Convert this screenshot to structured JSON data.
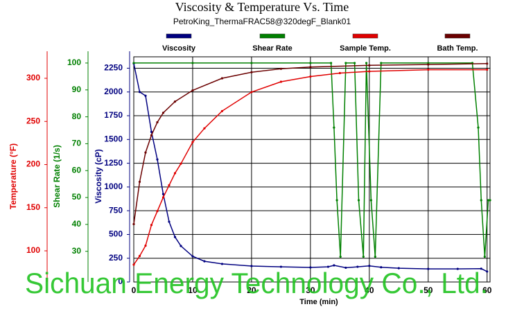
{
  "chart_data": {
    "type": "line",
    "title": "Viscosity & Temperature Vs. Time",
    "subtitle": "PetroKing_ThermaFRAC58@320degF_Blank01",
    "x_label": "Time (min)",
    "y_label": "Viscosity (cP)",
    "y2_label": "Shear Rate (1/s)",
    "y3_label": "Temperature (°F)",
    "watermark": "Sichuan Energy Technology Co., Ltd.",
    "xlim": [
      0,
      60.5
    ],
    "xticks": [
      0,
      10,
      20,
      30,
      40,
      50,
      60
    ],
    "ylim": [
      0,
      2370
    ],
    "yticks": [
      0,
      250,
      500,
      750,
      1000,
      1250,
      1500,
      1750,
      2000,
      2250
    ],
    "y2lim": [
      18.6,
      102.3
    ],
    "y2ticks": [
      30,
      40,
      50,
      60,
      70,
      80,
      90,
      100
    ],
    "y3lim": [
      63.9,
      324.9
    ],
    "y3ticks": [
      100,
      150,
      200,
      250,
      300
    ],
    "grid": true,
    "series": [
      {
        "name": "Viscosity",
        "color": "#000080",
        "axis": "y",
        "x": [
          0,
          1,
          2,
          3,
          4,
          5,
          6,
          7,
          8,
          10,
          12,
          15,
          20,
          25,
          30,
          33,
          34,
          36,
          38,
          40,
          42,
          45,
          50,
          55,
          59,
          60
        ],
        "values": [
          2300,
          2000,
          1960,
          1580,
          1290,
          925,
          634,
          473,
          379,
          270,
          218,
          190,
          168,
          160,
          153,
          160,
          175,
          150,
          160,
          170,
          155,
          145,
          138,
          138,
          140,
          110
        ]
      },
      {
        "name": "Shear Rate",
        "color": "#008000",
        "axis": "y2",
        "x": [
          0,
          10,
          20,
          30,
          33.5,
          34,
          34.5,
          35.1,
          36,
          37.5,
          38.2,
          39,
          39.5,
          40.3,
          41,
          42,
          50,
          57.5,
          58.5,
          59,
          59.6,
          60.2,
          60.5
        ],
        "values": [
          100,
          100,
          100,
          100,
          100,
          76,
          49,
          28,
          100,
          100,
          49,
          28,
          100,
          49,
          28,
          100,
          100,
          100,
          76,
          49,
          28,
          49,
          49
        ]
      },
      {
        "name": "Sample Temp.",
        "color": "#e00000",
        "axis": "y3",
        "x": [
          0,
          1,
          2,
          3,
          4,
          5,
          6,
          7,
          8,
          10,
          12,
          15,
          20,
          25,
          30,
          35,
          40,
          50,
          60
        ],
        "values": [
          84,
          94,
          106,
          130,
          146,
          162,
          176,
          190,
          201,
          226,
          242,
          262,
          284,
          296,
          302,
          306,
          308,
          310,
          310
        ]
      },
      {
        "name": "Bath Temp.",
        "color": "#6b0000",
        "axis": "y3",
        "x": [
          0,
          1,
          2,
          3,
          4,
          5,
          7,
          10,
          15,
          20,
          25,
          30,
          40,
          50,
          60
        ],
        "values": [
          131,
          180,
          214,
          234,
          249,
          260,
          273,
          286,
          300,
          307,
          311,
          313,
          315,
          316,
          317
        ]
      }
    ]
  }
}
